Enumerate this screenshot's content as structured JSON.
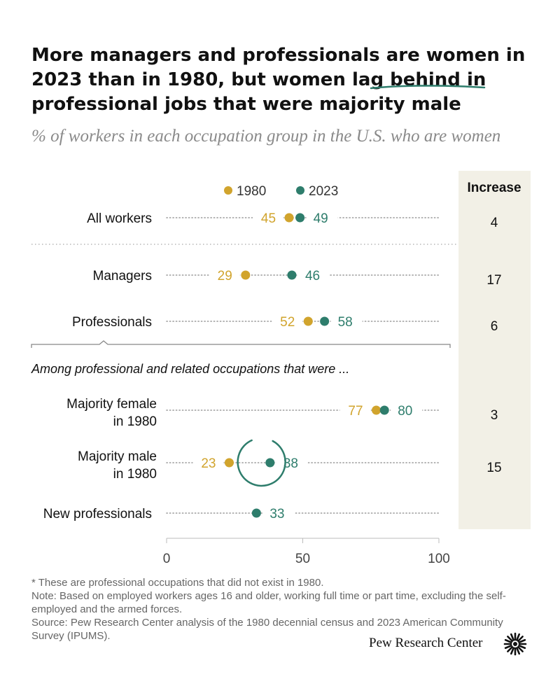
{
  "title_part1": "More managers and professionals are women in 2023 than in 1980, but women ",
  "title_highlight": "lag behind",
  "title_part2": " in professional jobs that were majority male",
  "subtitle": "% of workers in each occupation group in the U.S. who are women",
  "chart_data": {
    "type": "dot",
    "series": [
      {
        "name": "1980",
        "color": "#d1a42d"
      },
      {
        "name": "2023",
        "color": "#2e7d6c"
      }
    ],
    "increase_header": "Increase",
    "group_heading": "Among professional and related occupations that were ...",
    "rows": [
      {
        "label": [
          "All workers"
        ],
        "v1980": 45,
        "v2023": 49,
        "increase": "4"
      },
      {
        "label": [
          "Managers"
        ],
        "v1980": 29,
        "v2023": 46,
        "increase": "17"
      },
      {
        "label": [
          "Professionals"
        ],
        "v1980": 52,
        "v2023": 58,
        "increase": "6"
      },
      {
        "label": [
          "Majority female",
          "in 1980"
        ],
        "v1980": 77,
        "v2023": 80,
        "increase": "3"
      },
      {
        "label": [
          "Majority male",
          "in 1980"
        ],
        "v1980": 23,
        "v2023": 38,
        "increase": "15",
        "highlight": true
      },
      {
        "label": [
          "New professionals"
        ],
        "v1980": null,
        "v2023": 33,
        "increase": ""
      }
    ],
    "xlim": [
      0,
      100
    ],
    "xticks": [
      0,
      50,
      100
    ],
    "highlight_color": "#2e7d6c"
  },
  "notes": {
    "footnote": "* These are professional occupations that did not exist in 1980.",
    "note": "Note: Based on employed workers ages 16 and older, working full time or part time, excluding the self-employed and the armed forces.",
    "source": "Source: Pew Research Center analysis of the 1980 decennial census and 2023 American Community Survey (IPUMS)."
  },
  "brand": "Pew Research Center"
}
